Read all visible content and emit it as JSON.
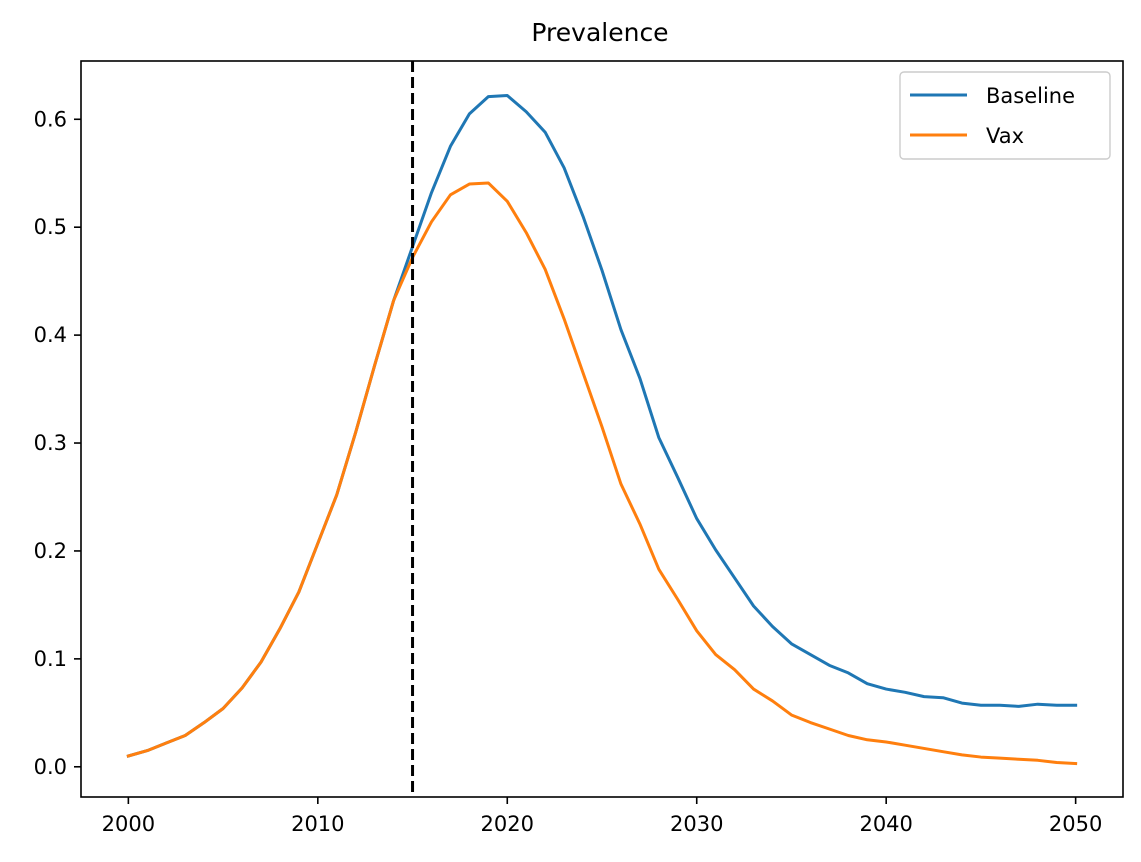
{
  "chart_data": {
    "type": "line",
    "title": "Prevalence",
    "xlabel": "",
    "ylabel": "",
    "xlim": [
      1997.5,
      2052.5
    ],
    "ylim": [
      -0.028,
      0.654
    ],
    "xticks": [
      2000,
      2010,
      2020,
      2030,
      2040,
      2050
    ],
    "xtick_labels": [
      "2000",
      "2010",
      "2020",
      "2030",
      "2040",
      "2050"
    ],
    "yticks": [
      0.0,
      0.1,
      0.2,
      0.3,
      0.4,
      0.5,
      0.6
    ],
    "ytick_labels": [
      "0.0",
      "0.1",
      "0.2",
      "0.3",
      "0.4",
      "0.5",
      "0.6"
    ],
    "grid": false,
    "legend_position": "top-right",
    "vline": {
      "x": 2015,
      "style": "dashed",
      "color": "#000000"
    },
    "x": [
      2000,
      2001,
      2002,
      2003,
      2004,
      2005,
      2006,
      2007,
      2008,
      2009,
      2010,
      2011,
      2012,
      2013,
      2014,
      2015,
      2016,
      2017,
      2018,
      2019,
      2020,
      2021,
      2022,
      2023,
      2024,
      2025,
      2026,
      2027,
      2028,
      2029,
      2030,
      2031,
      2032,
      2033,
      2034,
      2035,
      2036,
      2037,
      2038,
      2039,
      2040,
      2041,
      2042,
      2043,
      2044,
      2045,
      2046,
      2047,
      2048,
      2049,
      2050
    ],
    "series": [
      {
        "name": "Baseline",
        "color": "#1f77b4",
        "values": [
          0.01,
          0.015,
          0.022,
          0.029,
          0.041,
          0.054,
          0.073,
          0.097,
          0.128,
          0.162,
          0.207,
          0.252,
          0.31,
          0.372,
          0.432,
          0.482,
          0.532,
          0.575,
          0.605,
          0.621,
          0.622,
          0.607,
          0.588,
          0.555,
          0.51,
          0.46,
          0.405,
          0.36,
          0.305,
          0.268,
          0.23,
          0.201,
          0.175,
          0.149,
          0.13,
          0.114,
          0.104,
          0.094,
          0.087,
          0.077,
          0.072,
          0.069,
          0.065,
          0.064,
          0.059,
          0.057,
          0.057,
          0.056,
          0.058,
          0.057,
          0.057
        ]
      },
      {
        "name": "Vax",
        "color": "#ff7f0e",
        "values": [
          0.01,
          0.015,
          0.022,
          0.029,
          0.041,
          0.054,
          0.073,
          0.097,
          0.128,
          0.162,
          0.207,
          0.252,
          0.31,
          0.372,
          0.432,
          0.472,
          0.505,
          0.53,
          0.54,
          0.541,
          0.524,
          0.495,
          0.461,
          0.415,
          0.365,
          0.315,
          0.262,
          0.225,
          0.183,
          0.155,
          0.126,
          0.104,
          0.09,
          0.072,
          0.061,
          0.048,
          0.041,
          0.035,
          0.029,
          0.025,
          0.023,
          0.02,
          0.017,
          0.014,
          0.011,
          0.009,
          0.008,
          0.007,
          0.006,
          0.004,
          0.003
        ]
      }
    ]
  }
}
